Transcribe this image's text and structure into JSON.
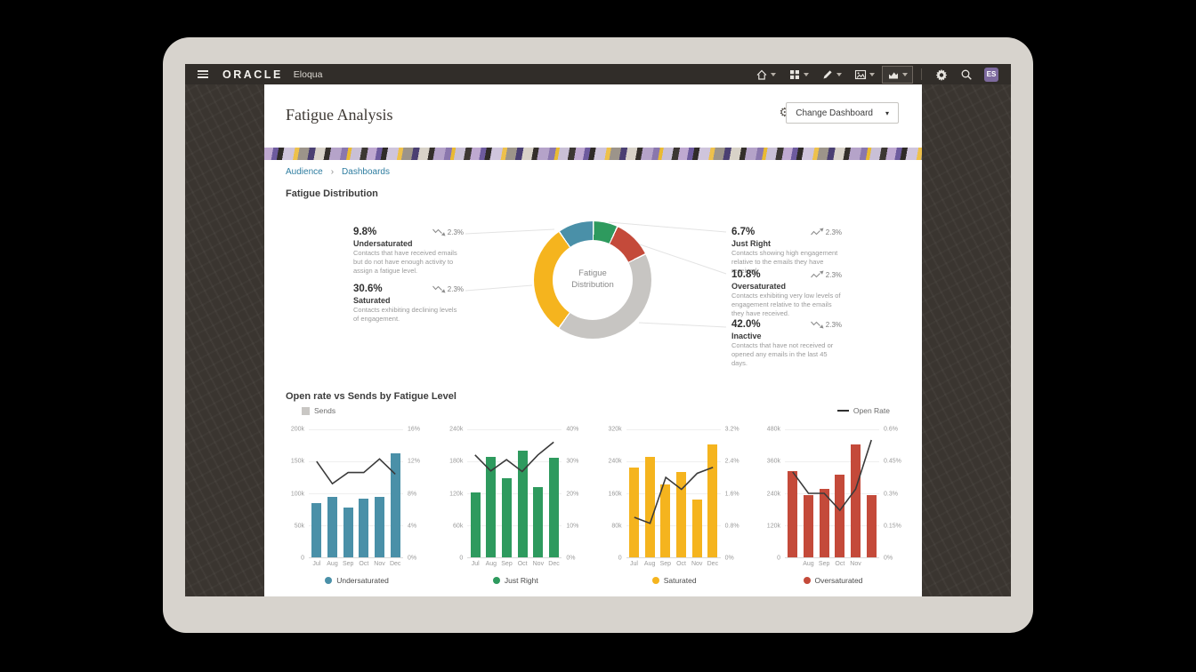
{
  "topbar": {
    "brand": "ORACLE",
    "product": "Eloqua",
    "avatar_initials": "ES"
  },
  "header": {
    "title": "Fatigue Analysis",
    "change_dashboard_label": "Change Dashboard"
  },
  "breadcrumb": {
    "items": [
      "Audience",
      "Dashboards"
    ],
    "separator": "›"
  },
  "fatigue_distribution": {
    "section_title": "Fatigue Distribution",
    "donut_center_label": "Fatigue Distribution",
    "stats_left": [
      {
        "value": "9.8%",
        "trend": "down",
        "trend_value": "2.3%",
        "label": "Undersaturated",
        "description": "Contacts that have received emails but do not have enough activity to assign a fatigue level."
      },
      {
        "value": "30.6%",
        "trend": "down",
        "trend_value": "2.3%",
        "label": "Saturated",
        "description": "Contacts exhibiting declining levels of engagement."
      }
    ],
    "stats_right": [
      {
        "value": "6.7%",
        "trend": "up",
        "trend_value": "2.3%",
        "label": "Just Right",
        "description": "Contacts showing high engagement relative to the emails they have received."
      },
      {
        "value": "10.8%",
        "trend": "up",
        "trend_value": "2.3%",
        "label": "Oversaturated",
        "description": "Contacts exhibiting very low levels of engagement relative to the emails they have received."
      },
      {
        "value": "42.0%",
        "trend": "down",
        "trend_value": "2.3%",
        "label": "Inactive",
        "description": "Contacts that have not received or opened any emails in the last 45 days."
      }
    ]
  },
  "charts_section": {
    "title": "Open rate vs Sends by Fatigue Level",
    "legend_sends": "Sends",
    "legend_open_rate": "Open Rate",
    "sends_color": "#c9c7c4",
    "open_rate_color": "#2f2f2f"
  },
  "chart_data": [
    {
      "type": "pie",
      "title": "Fatigue Distribution",
      "labels": [
        "Just Right",
        "Oversaturated",
        "Inactive",
        "Saturated",
        "Undersaturated"
      ],
      "values": [
        6.7,
        10.8,
        42.0,
        30.6,
        9.8
      ],
      "colors": [
        "#2e9a5e",
        "#c44a3a",
        "#c7c5c2",
        "#f5b41e",
        "#4a90a8"
      ]
    },
    {
      "type": "bar",
      "subtype": "bar+line",
      "title": "Undersaturated",
      "color": "#4a90a8",
      "categories": [
        "Jul",
        "Aug",
        "Sep",
        "Oct",
        "Nov",
        "Dec"
      ],
      "x_tick_labels": [
        "Jul",
        "Aug",
        "Sep",
        "Oct",
        "Nov",
        "Dec"
      ],
      "series": [
        {
          "name": "Sends",
          "axis": "left",
          "values": [
            85000,
            95000,
            78000,
            92000,
            95000,
            162000
          ]
        },
        {
          "name": "Open Rate",
          "axis": "right",
          "values": [
            12,
            9.2,
            10.6,
            10.6,
            12.3,
            10.4
          ]
        }
      ],
      "left_axis": {
        "max": 200000,
        "ticks": [
          "200k",
          "150k",
          "100k",
          "50k",
          "0"
        ]
      },
      "right_axis": {
        "max": 16,
        "ticks": [
          "16%",
          "12%",
          "8%",
          "4%",
          "0%"
        ]
      }
    },
    {
      "type": "bar",
      "subtype": "bar+line",
      "title": "Just Right",
      "color": "#2e9a5e",
      "categories": [
        "Jul",
        "Aug",
        "Sep",
        "Oct",
        "Nov",
        "Dec"
      ],
      "x_tick_labels": [
        "Jul",
        "Aug",
        "Sep",
        "Oct",
        "Nov",
        "Dec"
      ],
      "series": [
        {
          "name": "Sends",
          "axis": "left",
          "values": [
            122000,
            188000,
            148000,
            200000,
            132000,
            187000
          ]
        },
        {
          "name": "Open Rate",
          "axis": "right",
          "values": [
            32,
            27,
            30.5,
            26.8,
            32,
            36
          ]
        }
      ],
      "left_axis": {
        "max": 240000,
        "ticks": [
          "240k",
          "180k",
          "120k",
          "60k",
          "0"
        ]
      },
      "right_axis": {
        "max": 40,
        "ticks": [
          "40%",
          "30%",
          "20%",
          "10%",
          "0%"
        ]
      }
    },
    {
      "type": "bar",
      "subtype": "bar+line",
      "title": "Saturated",
      "color": "#f5b41e",
      "categories": [
        "Jul",
        "Aug",
        "Sep",
        "Oct",
        "Nov",
        "Dec"
      ],
      "x_tick_labels": [
        "Jul",
        "Aug",
        "Sep",
        "Oct",
        "Nov",
        "Dec"
      ],
      "series": [
        {
          "name": "Sends",
          "axis": "left",
          "values": [
            224000,
            251000,
            182000,
            213000,
            144000,
            283000
          ]
        },
        {
          "name": "Open Rate",
          "axis": "right",
          "values": [
            1.0,
            0.85,
            2.0,
            1.7,
            2.1,
            2.25
          ]
        }
      ],
      "left_axis": {
        "max": 320000,
        "ticks": [
          "320k",
          "240k",
          "160k",
          "80k",
          "0"
        ]
      },
      "right_axis": {
        "max": 3.2,
        "ticks": [
          "3.2%",
          "2.4%",
          "1.6%",
          "0.8%",
          "0%"
        ]
      }
    },
    {
      "type": "bar",
      "subtype": "bar+line",
      "title": "Oversaturated",
      "color": "#c44a3a",
      "categories": [
        "Jul",
        "Aug",
        "Sep",
        "Oct",
        "Nov",
        "Dec"
      ],
      "x_tick_labels": [
        "",
        "Aug",
        "Sep",
        "Oct",
        "Nov",
        ""
      ],
      "series": [
        {
          "name": "Sends",
          "axis": "left",
          "values": [
            322000,
            232000,
            258000,
            310000,
            425000,
            235000
          ]
        },
        {
          "name": "Open Rate",
          "axis": "right",
          "values": [
            0.4,
            0.3,
            0.3,
            0.22,
            0.32,
            0.55
          ]
        }
      ],
      "left_axis": {
        "max": 480000,
        "ticks": [
          "480k",
          "360k",
          "240k",
          "120k",
          "0"
        ]
      },
      "right_axis": {
        "max": 0.6,
        "ticks": [
          "0.6%",
          "0.45%",
          "0.3%",
          "0.15%",
          "0%"
        ]
      }
    }
  ]
}
